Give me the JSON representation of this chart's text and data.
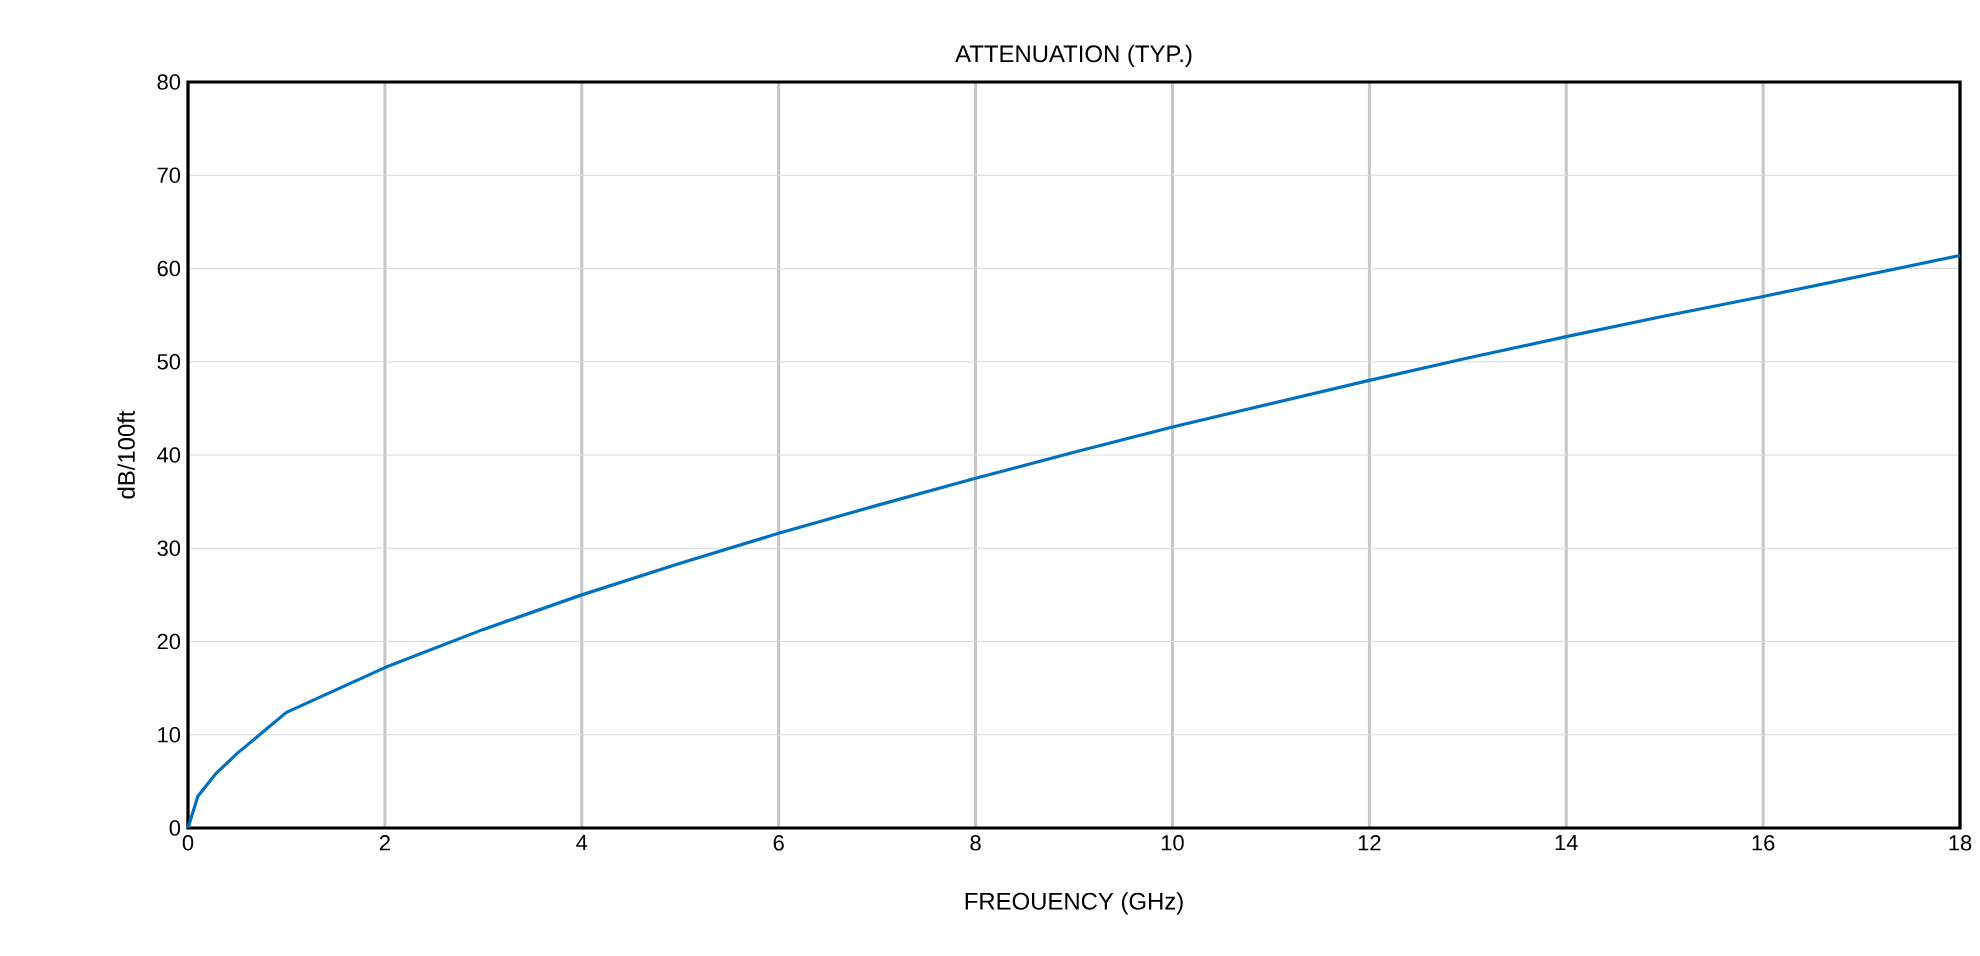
{
  "chart_data": {
    "type": "line",
    "title": "ATTENUATION (TYP.)",
    "xlabel": "FREOUENCY  (GHz)",
    "ylabel": "dB/100ft",
    "x": [
      0,
      0.1,
      0.28,
      0.5,
      1,
      2,
      3,
      4,
      5,
      6,
      7,
      8,
      9,
      10,
      11,
      12,
      13,
      14,
      15,
      16,
      17,
      18
    ],
    "series": [
      {
        "color": "#0070c0",
        "values": [
          0,
          3.4,
          5.8,
          8,
          12.4,
          17.2,
          21.3,
          25,
          28.4,
          31.6,
          34.6,
          37.5,
          40.3,
          43,
          45.5,
          48,
          50.4,
          52.7,
          54.9,
          57,
          59.2,
          61.4
        ]
      }
    ],
    "xlim": [
      0,
      18
    ],
    "xticks": [
      0,
      2,
      4,
      6,
      8,
      10,
      12,
      14,
      16,
      18
    ],
    "ylim": [
      0,
      80
    ],
    "yticks": [
      0,
      10,
      20,
      30,
      40,
      50,
      60,
      70,
      80
    ],
    "grid": true,
    "marker": "none",
    "line_style": "solid"
  }
}
